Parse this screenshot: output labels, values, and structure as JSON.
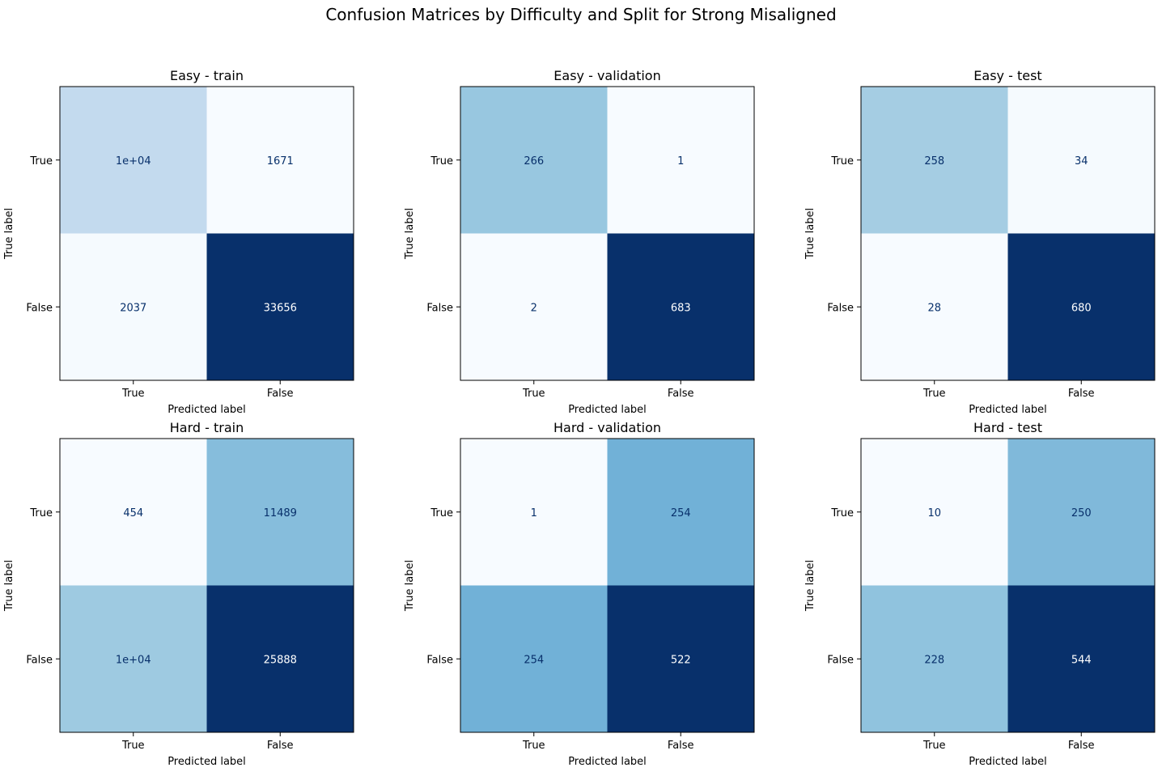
{
  "figure": {
    "suptitle": "Confusion Matrices by Difficulty and Split for Strong Misaligned"
  },
  "chart_data": [
    {
      "type": "heatmap",
      "title": "Easy - train",
      "xlabel": "Predicted label",
      "ylabel": "True label",
      "x_categories": [
        "True",
        "False"
      ],
      "y_categories": [
        "True",
        "False"
      ],
      "values": [
        [
          10000,
          1671
        ],
        [
          2037,
          33656
        ]
      ],
      "cell_labels": [
        [
          "1e+04",
          "1671"
        ],
        [
          "2037",
          "33656"
        ]
      ],
      "colormap": "Blues",
      "grid": false
    },
    {
      "type": "heatmap",
      "title": "Easy - validation",
      "xlabel": "Predicted label",
      "ylabel": "True label",
      "x_categories": [
        "True",
        "False"
      ],
      "y_categories": [
        "True",
        "False"
      ],
      "values": [
        [
          266,
          1
        ],
        [
          2,
          683
        ]
      ],
      "cell_labels": [
        [
          "266",
          "1"
        ],
        [
          "2",
          "683"
        ]
      ],
      "colormap": "Blues",
      "grid": false
    },
    {
      "type": "heatmap",
      "title": "Easy - test",
      "xlabel": "Predicted label",
      "ylabel": "True label",
      "x_categories": [
        "True",
        "False"
      ],
      "y_categories": [
        "True",
        "False"
      ],
      "values": [
        [
          258,
          34
        ],
        [
          28,
          680
        ]
      ],
      "cell_labels": [
        [
          "258",
          "34"
        ],
        [
          "28",
          "680"
        ]
      ],
      "colormap": "Blues",
      "grid": false
    },
    {
      "type": "heatmap",
      "title": "Hard - train",
      "xlabel": "Predicted label",
      "ylabel": "True label",
      "x_categories": [
        "True",
        "False"
      ],
      "y_categories": [
        "True",
        "False"
      ],
      "values": [
        [
          454,
          11489
        ],
        [
          10000,
          25888
        ]
      ],
      "cell_labels": [
        [
          "454",
          "11489"
        ],
        [
          "1e+04",
          "25888"
        ]
      ],
      "colormap": "Blues",
      "grid": false
    },
    {
      "type": "heatmap",
      "title": "Hard - validation",
      "xlabel": "Predicted label",
      "ylabel": "True label",
      "x_categories": [
        "True",
        "False"
      ],
      "y_categories": [
        "True",
        "False"
      ],
      "values": [
        [
          1,
          254
        ],
        [
          254,
          522
        ]
      ],
      "cell_labels": [
        [
          "1",
          "254"
        ],
        [
          "254",
          "522"
        ]
      ],
      "colormap": "Blues",
      "grid": false
    },
    {
      "type": "heatmap",
      "title": "Hard - test",
      "xlabel": "Predicted label",
      "ylabel": "True label",
      "x_categories": [
        "True",
        "False"
      ],
      "y_categories": [
        "True",
        "False"
      ],
      "values": [
        [
          10,
          250
        ],
        [
          228,
          544
        ]
      ],
      "cell_labels": [
        [
          "10",
          "250"
        ],
        [
          "228",
          "544"
        ]
      ],
      "colormap": "Blues",
      "grid": false
    }
  ]
}
